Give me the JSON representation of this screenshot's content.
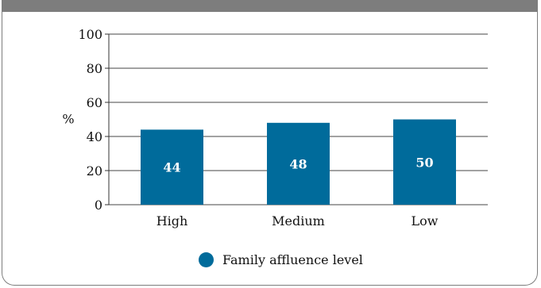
{
  "header": {
    "title": ""
  },
  "chart_data": {
    "type": "bar",
    "title": "",
    "xlabel": "",
    "ylabel": "%",
    "ylim": [
      0,
      100
    ],
    "yticks": [
      0,
      20,
      40,
      60,
      80,
      100
    ],
    "grid": true,
    "categories": [
      "High",
      "Medium",
      "Low"
    ],
    "series": [
      {
        "name": "Family affluence level",
        "values": [
          44,
          48,
          50
        ],
        "color": "#006b9b"
      }
    ],
    "data_labels": true,
    "legend_position": "bottom-center"
  },
  "colors": {
    "header_band": "#7d7d7d",
    "bar": "#006b9b",
    "gridline": "#444444",
    "bar_label": "#ffffff"
  }
}
